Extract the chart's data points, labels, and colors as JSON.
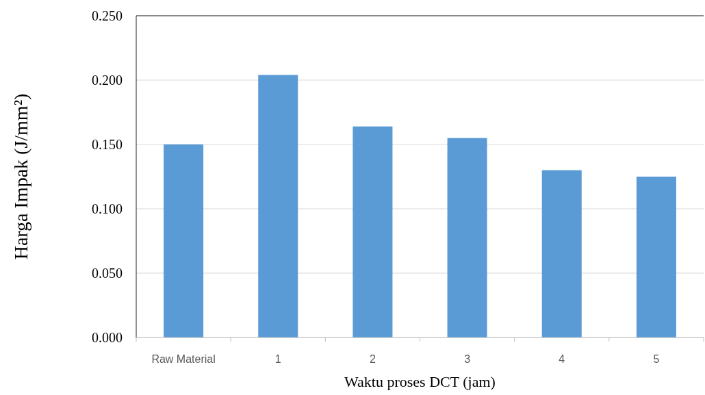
{
  "chart_data": {
    "type": "bar",
    "xlabel": "Waktu proses DCT (jam)",
    "ylabel": "Harga Impak (J/mm²)",
    "categories": [
      "Raw Material",
      "1",
      "2",
      "3",
      "4",
      "5"
    ],
    "values": [
      0.15,
      0.204,
      0.164,
      0.155,
      0.13,
      0.125
    ],
    "color": "#5b9bd5",
    "ylim": [
      0,
      0.25
    ],
    "yticks": [
      {
        "value": 0,
        "label": "0.000"
      },
      {
        "value": 0.05,
        "label": "0.050"
      },
      {
        "value": 0.1,
        "label": "0.100"
      },
      {
        "value": 0.15,
        "label": "0.150"
      },
      {
        "value": 0.2,
        "label": "0.200"
      },
      {
        "value": 0.25,
        "label": "0.250"
      }
    ],
    "grid": "y"
  }
}
